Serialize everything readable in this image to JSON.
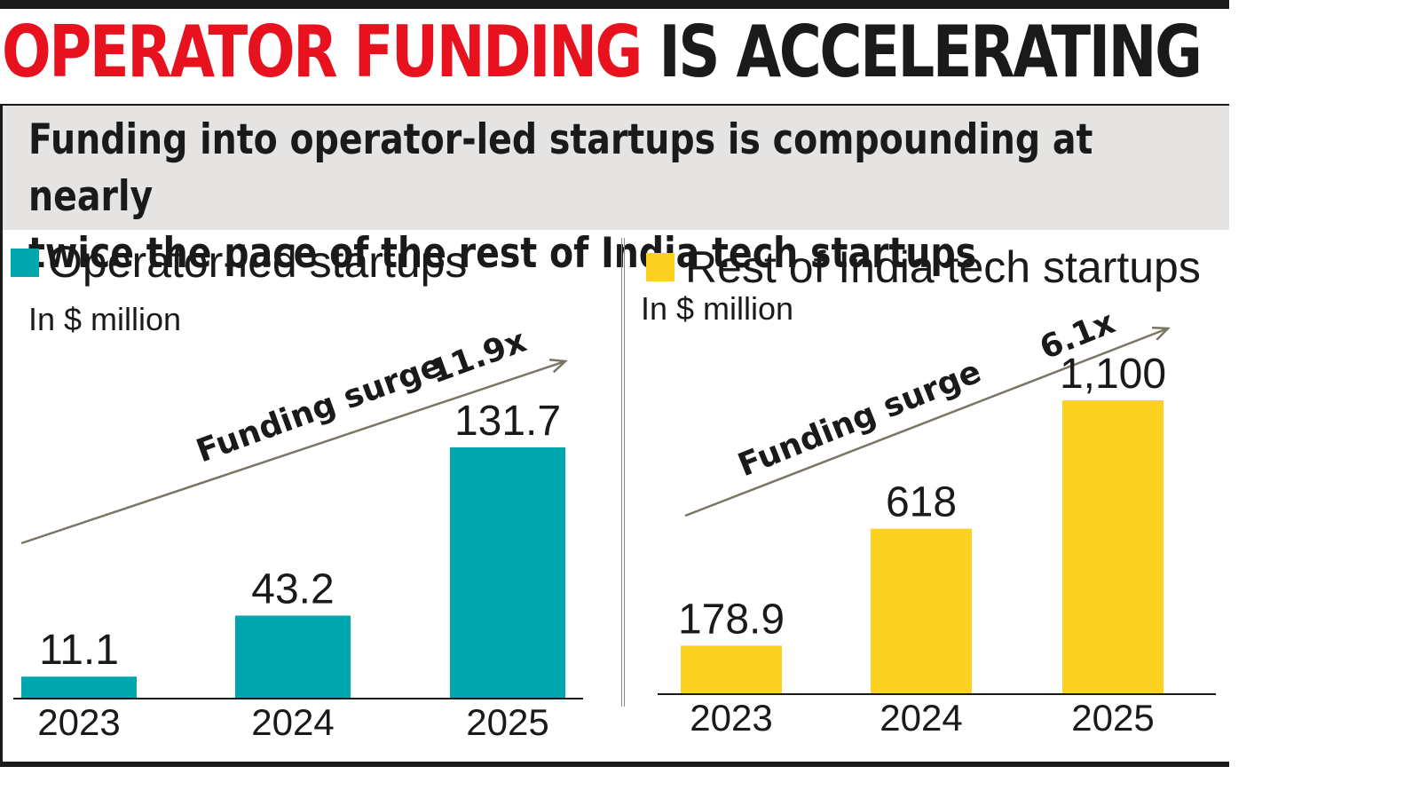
{
  "headline": {
    "red_part": "OPERATOR FUNDING",
    "black_part": "IS ACCELERATING"
  },
  "subtitle": "Funding into operator-led startups is compounding at nearly\ntwice the pace of the rest of India tech startups",
  "colors": {
    "operator": "#00a6ae",
    "rest": "#fdd122",
    "headline_red": "#e8121f",
    "arrow": "#7a7564"
  },
  "chart_data": [
    {
      "type": "bar",
      "legend": "Operator-led startups",
      "unit": "In $ million",
      "categories": [
        "2023",
        "2024",
        "2025"
      ],
      "values": [
        11.1,
        43.2,
        131.7
      ],
      "value_labels": [
        "11.1",
        "43.2",
        "131.7"
      ],
      "annotation": {
        "text": "Funding surge",
        "multiple": "11.9x"
      }
    },
    {
      "type": "bar",
      "legend": "Rest of India tech startups",
      "unit": "In $ million",
      "categories": [
        "2023",
        "2024",
        "2025"
      ],
      "values": [
        178.9,
        618,
        1100
      ],
      "value_labels": [
        "178.9",
        "618",
        "1,100"
      ],
      "annotation": {
        "text": "Funding surge",
        "multiple": "6.1x"
      }
    }
  ]
}
